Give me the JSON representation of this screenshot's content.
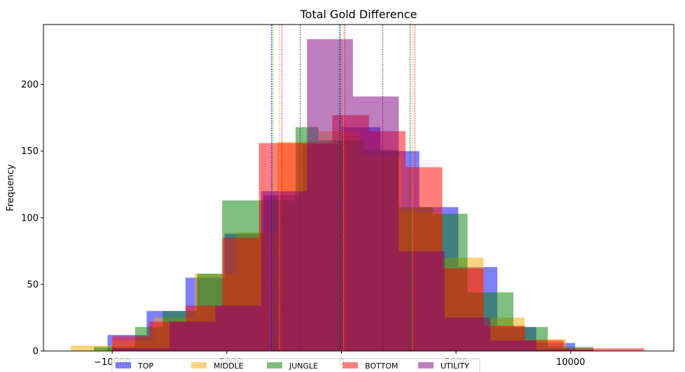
{
  "chart_data": {
    "type": "histogram",
    "title": "Total Gold Difference",
    "xlabel": "",
    "ylabel": "Frequency",
    "xlim": [
      -13000,
      14500
    ],
    "ylim": [
      0,
      245
    ],
    "xticks": [
      -10000,
      -5000,
      0,
      5000,
      10000
    ],
    "xtick_labels": [
      "−10000",
      "−5000",
      "0",
      "5000",
      "10000"
    ],
    "yticks": [
      0,
      50,
      100,
      150,
      200
    ],
    "grid": false,
    "legend": {
      "placement": "bottom-center",
      "ncol": 5
    },
    "series": [
      {
        "name": "TOP",
        "color": "#0000ff",
        "alpha": 0.5,
        "bins": [
          [
            -10200,
            -8500,
            12
          ],
          [
            -8500,
            -6800,
            30
          ],
          [
            -6800,
            -5100,
            55
          ],
          [
            -5100,
            -3400,
            88
          ],
          [
            -3400,
            -1700,
            117
          ],
          [
            -1700,
            0,
            155
          ],
          [
            0,
            1700,
            168
          ],
          [
            1700,
            3400,
            150
          ],
          [
            3400,
            5100,
            108
          ],
          [
            5100,
            6800,
            63
          ],
          [
            6800,
            8500,
            18
          ],
          [
            8500,
            10200,
            6
          ]
        ],
        "stat_lines": [
          -3050,
          -50,
          3000
        ]
      },
      {
        "name": "MIDDLE",
        "color": "#ffa500",
        "alpha": 0.5,
        "bins": [
          [
            -11800,
            -10000,
            4
          ],
          [
            -10000,
            -8200,
            8
          ],
          [
            -8200,
            -6400,
            25
          ],
          [
            -6400,
            -4600,
            58
          ],
          [
            -4600,
            -2800,
            89
          ],
          [
            -2800,
            -1000,
            157
          ],
          [
            -1000,
            800,
            165
          ],
          [
            800,
            2600,
            146
          ],
          [
            2600,
            4400,
            104
          ],
          [
            4400,
            6200,
            70
          ],
          [
            6200,
            8000,
            25
          ],
          [
            8000,
            9800,
            9
          ]
        ],
        "stat_lines": [
          -2700,
          100,
          3100
        ]
      },
      {
        "name": "JUNGLE",
        "color": "#008000",
        "alpha": 0.5,
        "bins": [
          [
            -10800,
            -9000,
            3
          ],
          [
            -9000,
            -7800,
            18
          ],
          [
            -7800,
            -6300,
            30
          ],
          [
            -6300,
            -5200,
            58
          ],
          [
            -5200,
            -4200,
            113
          ],
          [
            -4200,
            -2000,
            113
          ],
          [
            -2000,
            -1000,
            168
          ],
          [
            -1000,
            1000,
            158
          ],
          [
            1000,
            2500,
            151
          ],
          [
            2500,
            4000,
            108
          ],
          [
            4000,
            5500,
            103
          ],
          [
            5500,
            7500,
            44
          ],
          [
            7500,
            9000,
            18
          ],
          [
            9000,
            11000,
            3
          ]
        ],
        "stat_lines": [
          -3000,
          -100,
          3000
        ]
      },
      {
        "name": "BOTTOM",
        "color": "#ff0000",
        "alpha": 0.5,
        "bins": [
          [
            -10000,
            -8400,
            11
          ],
          [
            -8400,
            -6800,
            22
          ],
          [
            -6800,
            -5200,
            34
          ],
          [
            -5200,
            -3600,
            85
          ],
          [
            -3600,
            -2000,
            156
          ],
          [
            -2000,
            -400,
            156
          ],
          [
            -400,
            1200,
            177
          ],
          [
            1200,
            2800,
            165
          ],
          [
            2800,
            4400,
            138
          ],
          [
            4400,
            6200,
            62
          ],
          [
            6200,
            8000,
            19
          ],
          [
            8000,
            9700,
            8
          ],
          [
            9700,
            11500,
            2
          ],
          [
            11500,
            13200,
            2
          ]
        ],
        "stat_lines": [
          -2600,
          150,
          3200
        ]
      },
      {
        "name": "UTILITY",
        "color": "#800080",
        "alpha": 0.5,
        "bins": [
          [
            -10000,
            -7500,
            2
          ],
          [
            -7500,
            -5500,
            22
          ],
          [
            -5500,
            -3500,
            34
          ],
          [
            -3500,
            -1500,
            120
          ],
          [
            -1500,
            500,
            234
          ],
          [
            500,
            2500,
            191
          ],
          [
            2500,
            4500,
            75
          ],
          [
            4500,
            6500,
            25
          ],
          [
            6500,
            8500,
            8
          ],
          [
            8500,
            11000,
            1
          ]
        ],
        "stat_lines": [
          -1800,
          1800
        ]
      }
    ]
  }
}
